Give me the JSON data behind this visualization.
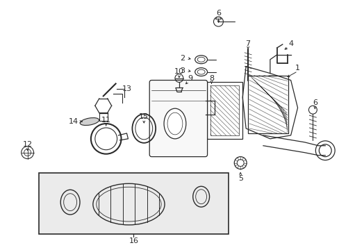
{
  "bg_color": "#ffffff",
  "fig_width": 4.89,
  "fig_height": 3.6,
  "dpi": 100,
  "line_color": "#2a2a2a",
  "bg_box_color": "#ebebeb"
}
